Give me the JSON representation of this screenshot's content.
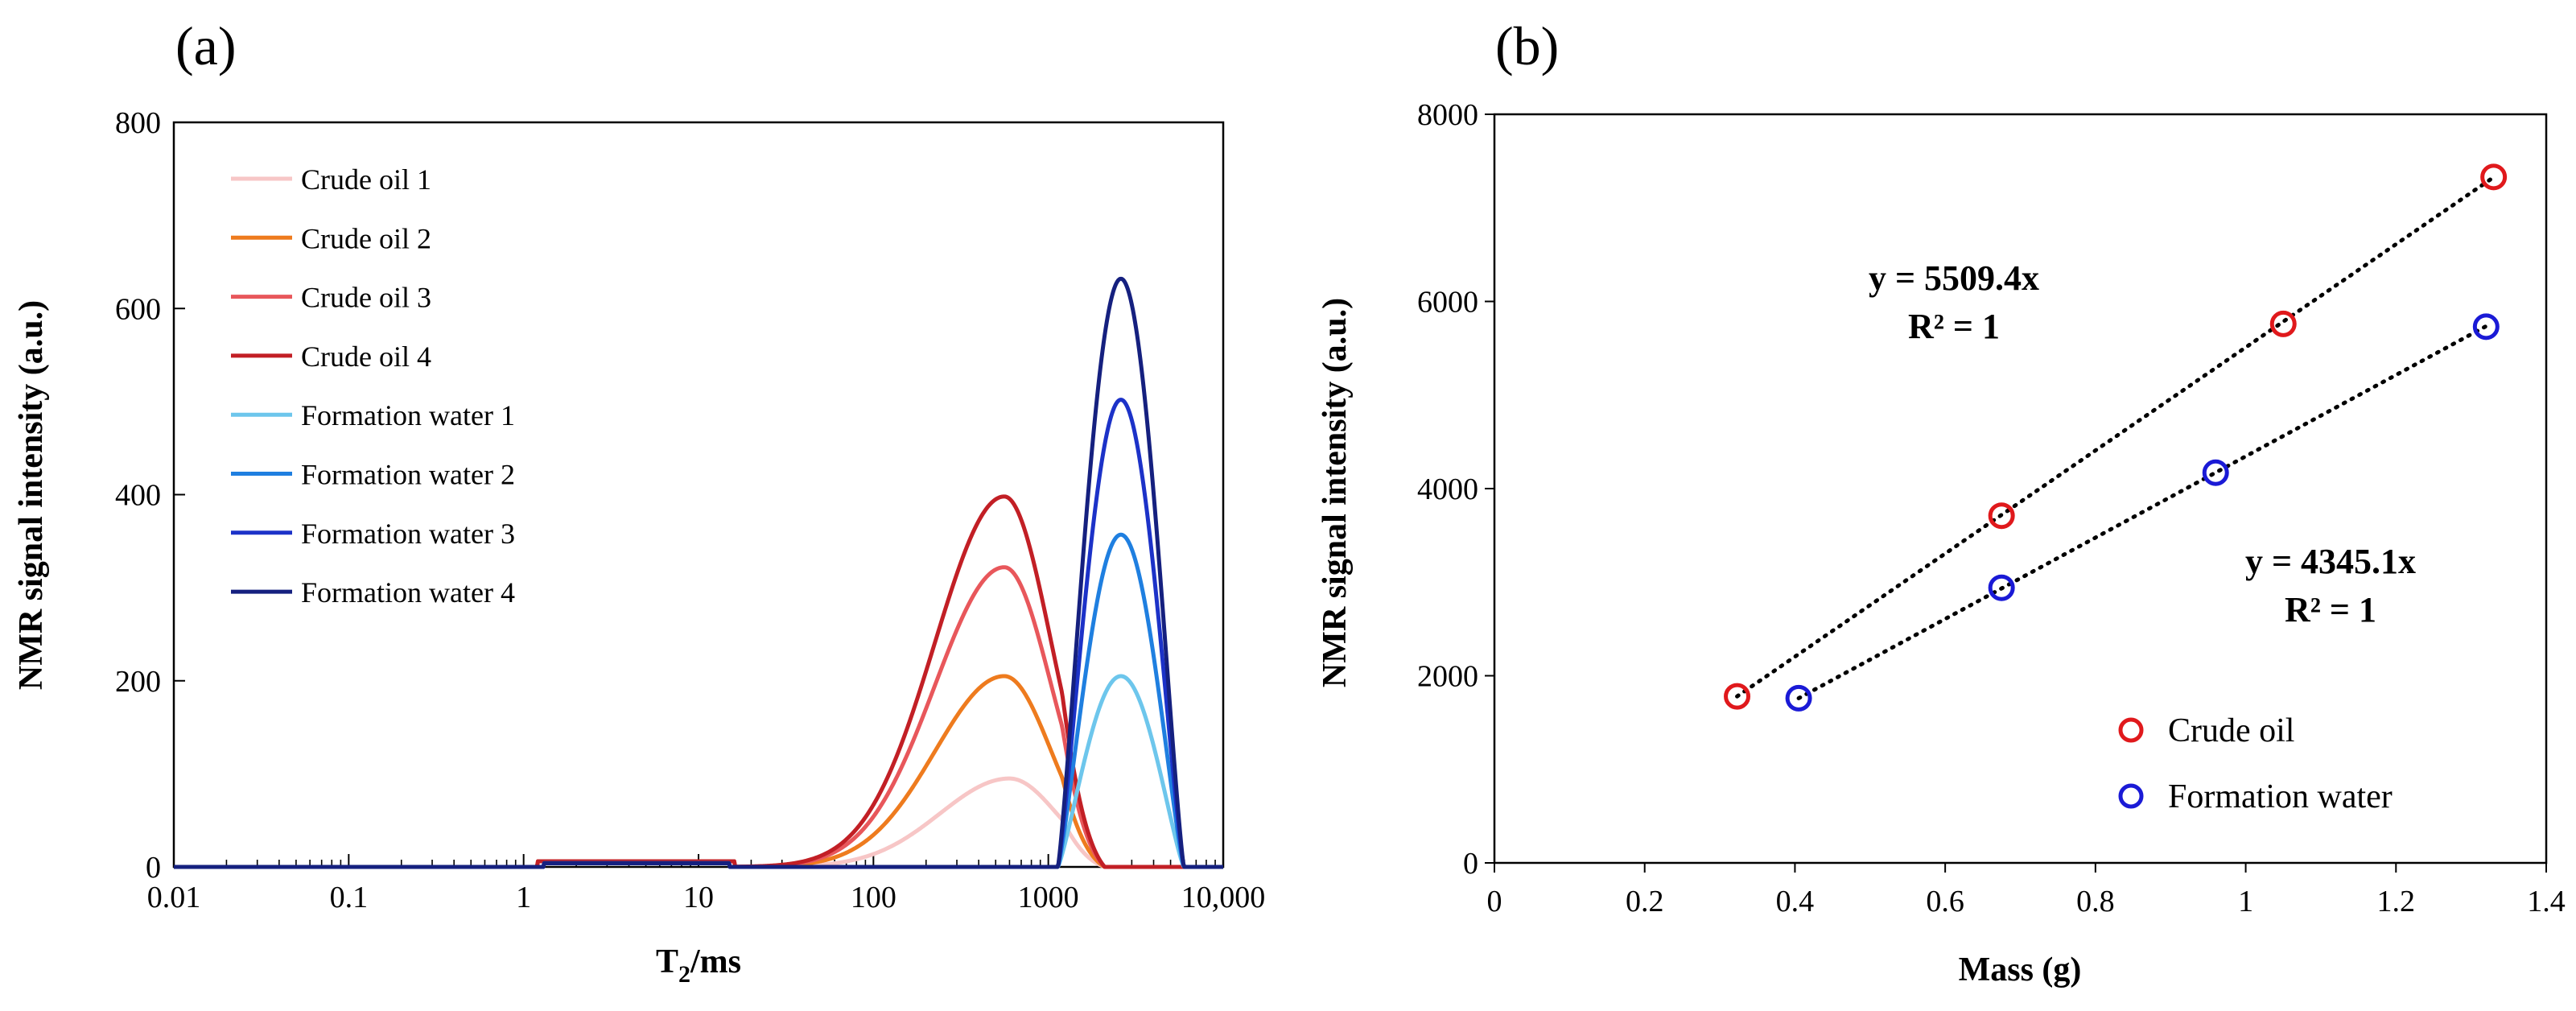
{
  "chart_data": [
    {
      "panel_label": "(a)",
      "type": "line",
      "xscale": "log",
      "xlim": [
        0.01,
        10000
      ],
      "ylim": [
        0,
        800
      ],
      "xlabel_main": "T",
      "xlabel_sub": "2",
      "xlabel_rest": "/ms",
      "ylabel": "NMR signal intensity (a.u.)",
      "xticks": [
        0.01,
        0.1,
        1,
        10,
        100,
        1000,
        10000
      ],
      "xtick_labels": [
        "0.01",
        "0.1",
        "1",
        "10",
        "100",
        "1000",
        "10,000"
      ],
      "yticks": [
        0,
        200,
        400,
        600,
        800
      ],
      "ytick_labels": [
        "0",
        "200",
        "400",
        "600",
        "800"
      ],
      "legend": "top-left",
      "series": [
        {
          "name": "Crude oil 1",
          "color": "#f7c6c6",
          "kind": "oil",
          "amplitude": 95,
          "peak": 600
        },
        {
          "name": "Crude oil 2",
          "color": "#ee7b1e",
          "kind": "oil",
          "amplitude": 205,
          "peak": 560
        },
        {
          "name": "Crude oil 3",
          "color": "#e8575b",
          "kind": "oil",
          "amplitude": 322,
          "peak": 560
        },
        {
          "name": "Crude oil 4",
          "color": "#c21f25",
          "kind": "oil",
          "amplitude": 398,
          "peak": 560
        },
        {
          "name": "Formation water 1",
          "color": "#6dc6ec",
          "kind": "water",
          "amplitude": 205,
          "peak": 2600
        },
        {
          "name": "Formation water 2",
          "color": "#1f7fe0",
          "kind": "water",
          "amplitude": 357,
          "peak": 2600
        },
        {
          "name": "Formation water 3",
          "color": "#1c32c8",
          "kind": "water",
          "amplitude": 502,
          "peak": 2600
        },
        {
          "name": "Formation water 4",
          "color": "#15207f",
          "kind": "water",
          "amplitude": 632,
          "peak": 2600
        }
      ]
    },
    {
      "panel_label": "(b)",
      "type": "scatter",
      "xlim": [
        0,
        1.4
      ],
      "ylim": [
        0,
        8000
      ],
      "xlabel": "Mass (g)",
      "ylabel": "NMR signal intensity (a.u.)",
      "xticks": [
        0,
        0.2,
        0.4,
        0.6,
        0.8,
        1,
        1.2,
        1.4
      ],
      "xtick_labels": [
        "0",
        "0.2",
        "0.4",
        "0.6",
        "0.8",
        "1",
        "1.2",
        "1.4"
      ],
      "yticks": [
        0,
        2000,
        4000,
        6000,
        8000
      ],
      "ytick_labels": [
        "0",
        "2000",
        "4000",
        "6000",
        "8000"
      ],
      "legend": "bottom-right",
      "series": [
        {
          "name": "Crude oil",
          "color": "#e0191c",
          "x": [
            0.323,
            0.675,
            1.05,
            1.33
          ],
          "y": [
            1780,
            3710,
            5760,
            7330
          ],
          "trendline": {
            "slope": 5509.4,
            "x_range": [
              0.323,
              1.33
            ]
          },
          "equation": "y = 5509.4x",
          "r2": "R² = 1"
        },
        {
          "name": "Formation water",
          "color": "#1a1ad6",
          "x": [
            0.405,
            0.675,
            0.96,
            1.32
          ],
          "y": [
            1760,
            2940,
            4170,
            5730
          ],
          "trendline": {
            "slope": 4345.1,
            "x_range": [
              0.405,
              1.32
            ]
          },
          "equation": "y = 4345.1x",
          "r2": "R² = 1"
        }
      ]
    }
  ]
}
